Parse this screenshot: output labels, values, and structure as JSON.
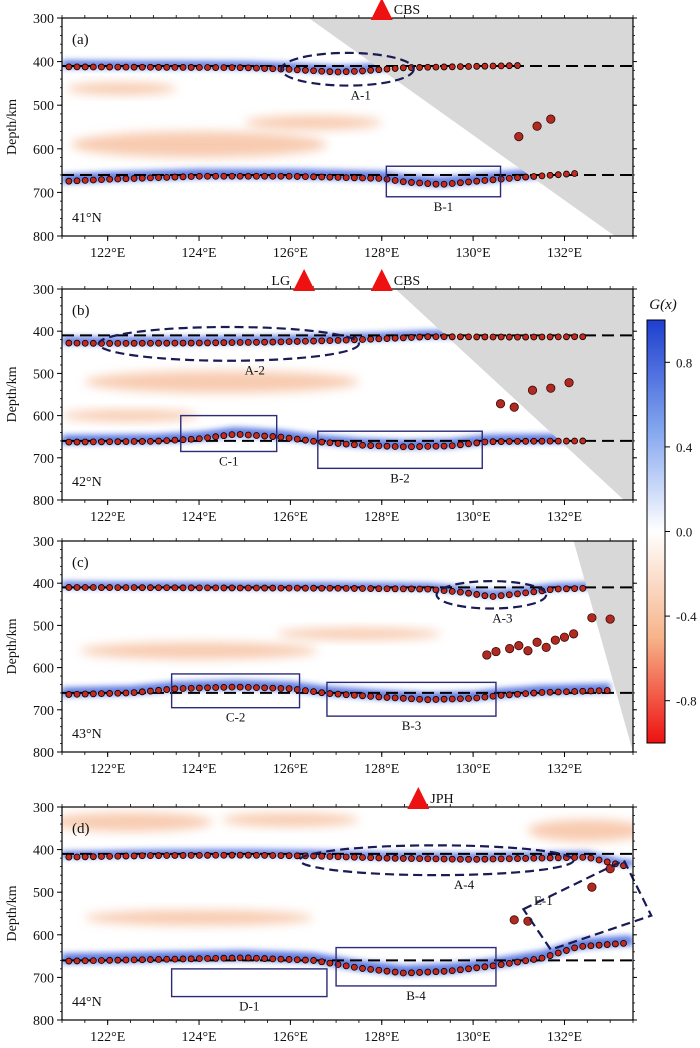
{
  "figure": {
    "colorbar": {
      "label": "G(x)",
      "tick_labels": [
        "0.8",
        "0.4",
        "0.0",
        "-0.4",
        "-0.8"
      ],
      "ticks": [
        0.8,
        0.4,
        0.0,
        -0.4,
        -0.8
      ],
      "range": [
        -1,
        1
      ],
      "colors": {
        "positive": "#1f3ecf",
        "mid": "#ffffff",
        "negative": "#ee1111"
      }
    },
    "colors": {
      "station": "#ee1111",
      "trace_fill": "#c62a1e",
      "blue": "#2a4fd6",
      "orange": "#f2a070",
      "mask": "#d8d8d8",
      "ellipse": "#1a1a55",
      "box": "#2b2b7a"
    }
  },
  "chart_data": [
    {
      "type": "heatmap",
      "panel": "(a)",
      "latitude_label": "41°N",
      "ylabel": "Depth/km",
      "xlim": [
        121,
        133.5
      ],
      "ylim": [
        800,
        300
      ],
      "x_tick_values": [
        122,
        124,
        126,
        128,
        130,
        132
      ],
      "x_tick_labels": [
        "122°E",
        "124°E",
        "126°E",
        "128°E",
        "130°E",
        "132°E"
      ],
      "y_tick_labels": [
        "300",
        "400",
        "500",
        "600",
        "700",
        "800"
      ],
      "y_ticks": [
        300,
        400,
        500,
        600,
        700,
        800
      ],
      "reference_depths": [
        410,
        660
      ],
      "stations": [
        {
          "name": "CBS",
          "lon": 128
        }
      ],
      "d410": {
        "lon": [
          121,
          123,
          125,
          126,
          127,
          127.5,
          128.5,
          130,
          131
        ],
        "depth": [
          412,
          413,
          414,
          418,
          424,
          422,
          414,
          411,
          409
        ]
      },
      "d660": {
        "lon": [
          121,
          122,
          124,
          126,
          128,
          128.5,
          129.3,
          130,
          131,
          132.3
        ],
        "depth": [
          675,
          670,
          663,
          663,
          668,
          676,
          682,
          675,
          666,
          656
        ]
      },
      "earthquakes": [
        {
          "lon": 131.0,
          "depth": 572
        },
        {
          "lon": 131.4,
          "depth": 548
        },
        {
          "lon": 131.7,
          "depth": 532
        }
      ],
      "mask_polygon": {
        "lon": [
          126.4,
          133.5,
          133.5,
          133.1
        ],
        "depth": [
          300,
          300,
          800,
          800
        ]
      },
      "annotations": [
        {
          "type": "ellipse",
          "label": "A-1",
          "lon_range": [
            125.8,
            128.7
          ],
          "depth_range": [
            380,
            455
          ]
        },
        {
          "type": "box",
          "label": "B-1",
          "lon_range": [
            128.1,
            130.6
          ],
          "depth_range": [
            640,
            710
          ]
        }
      ],
      "blue_bands": [
        {
          "lon": [
            121,
            133
          ],
          "depth": 410,
          "thickness": 18
        },
        {
          "lon": [
            121,
            133
          ],
          "depth": 660,
          "thickness": 22
        }
      ],
      "orange_blobs": [
        {
          "lon": 124,
          "depth": 590,
          "rx": 2.8,
          "ry": 30
        },
        {
          "lon": 122.3,
          "depth": 462,
          "rx": 1.2,
          "ry": 14
        },
        {
          "lon": 126.5,
          "depth": 540,
          "rx": 1.5,
          "ry": 16
        }
      ]
    },
    {
      "type": "heatmap",
      "panel": "(b)",
      "latitude_label": "42°N",
      "ylabel": "Depth/km",
      "xlim": [
        121,
        133.5
      ],
      "ylim": [
        800,
        300
      ],
      "x_tick_values": [
        122,
        124,
        126,
        128,
        130,
        132
      ],
      "x_tick_labels": [
        "122°E",
        "124°E",
        "126°E",
        "128°E",
        "130°E",
        "132°E"
      ],
      "y_tick_labels": [
        "300",
        "400",
        "500",
        "600",
        "700",
        "800"
      ],
      "y_ticks": [
        300,
        400,
        500,
        600,
        700,
        800
      ],
      "reference_depths": [
        410,
        660
      ],
      "stations": [
        {
          "name": "LG",
          "lon": 126.3
        },
        {
          "name": "CBS",
          "lon": 128
        }
      ],
      "d410": {
        "lon": [
          121,
          122,
          124,
          125.5,
          127,
          128,
          129,
          131,
          132.5
        ],
        "depth": [
          428,
          429,
          428,
          426,
          422,
          418,
          413,
          414,
          413
        ]
      },
      "d660": {
        "lon": [
          121,
          123,
          124,
          124.8,
          125.8,
          126.6,
          127.5,
          128.5,
          129.5,
          130.3,
          131,
          132.5
        ],
        "depth": [
          663,
          661,
          655,
          644,
          651,
          662,
          670,
          674,
          672,
          662,
          661,
          660
        ]
      },
      "earthquakes": [
        {
          "lon": 130.6,
          "depth": 572
        },
        {
          "lon": 130.9,
          "depth": 580
        },
        {
          "lon": 131.3,
          "depth": 540
        },
        {
          "lon": 131.7,
          "depth": 535
        },
        {
          "lon": 132.1,
          "depth": 522
        }
      ],
      "mask_polygon": {
        "lon": [
          128.3,
          133.5,
          133.5,
          133.3
        ],
        "depth": [
          300,
          300,
          800,
          800
        ]
      },
      "annotations": [
        {
          "type": "ellipse",
          "label": "A-2",
          "lon_range": [
            121.8,
            127.5
          ],
          "depth_range": [
            390,
            470
          ]
        },
        {
          "type": "box",
          "label": "C-1",
          "lon_range": [
            123.6,
            125.7
          ],
          "depth_range": [
            600,
            685
          ]
        },
        {
          "type": "box",
          "label": "B-2",
          "lon_range": [
            126.6,
            130.2
          ],
          "depth_range": [
            637,
            725
          ]
        }
      ],
      "blue_bands": [
        {
          "lon": [
            121,
            133
          ],
          "depth": 412,
          "thickness": 18
        },
        {
          "lon": [
            121,
            133
          ],
          "depth": 655,
          "thickness": 22
        }
      ],
      "orange_blobs": [
        {
          "lon": 124.5,
          "depth": 520,
          "rx": 3.0,
          "ry": 26
        },
        {
          "lon": 122.5,
          "depth": 600,
          "rx": 1.5,
          "ry": 14
        }
      ]
    },
    {
      "type": "heatmap",
      "panel": "(c)",
      "latitude_label": "43°N",
      "ylabel": "Depth/km",
      "xlim": [
        121,
        133.5
      ],
      "ylim": [
        800,
        300
      ],
      "x_tick_values": [
        122,
        124,
        126,
        128,
        130,
        132
      ],
      "x_tick_labels": [
        "122°E",
        "124°E",
        "126°E",
        "128°E",
        "130°E",
        "132°E"
      ],
      "y_tick_labels": [
        "300",
        "400",
        "500",
        "600",
        "700",
        "800"
      ],
      "y_ticks": [
        300,
        400,
        500,
        600,
        700,
        800
      ],
      "reference_depths": [
        410,
        660
      ],
      "stations": [],
      "d410": {
        "lon": [
          121,
          124,
          127,
          129,
          129.8,
          130.4,
          131,
          131.8,
          132.5
        ],
        "depth": [
          410,
          411,
          412,
          414,
          422,
          432,
          425,
          414,
          412
        ]
      },
      "d660": {
        "lon": [
          121,
          122.5,
          123.5,
          124.8,
          126,
          126.8,
          128,
          129,
          130,
          130.6,
          131.5,
          133
        ],
        "depth": [
          664,
          660,
          650,
          646,
          650,
          661,
          670,
          676,
          673,
          666,
          659,
          654
        ]
      },
      "earthquakes": [
        {
          "lon": 130.3,
          "depth": 570
        },
        {
          "lon": 130.5,
          "depth": 562
        },
        {
          "lon": 130.8,
          "depth": 555
        },
        {
          "lon": 131.0,
          "depth": 548
        },
        {
          "lon": 131.2,
          "depth": 560
        },
        {
          "lon": 131.4,
          "depth": 540
        },
        {
          "lon": 131.6,
          "depth": 552
        },
        {
          "lon": 131.8,
          "depth": 535
        },
        {
          "lon": 132.0,
          "depth": 528
        },
        {
          "lon": 132.2,
          "depth": 520
        },
        {
          "lon": 132.6,
          "depth": 482
        },
        {
          "lon": 133.0,
          "depth": 485
        }
      ],
      "mask_polygon": {
        "lon": [
          132.2,
          133.5,
          133.5
        ],
        "depth": [
          300,
          300,
          800
        ]
      },
      "annotations": [
        {
          "type": "ellipse",
          "label": "A-3",
          "lon_range": [
            129.2,
            131.6
          ],
          "depth_range": [
            395,
            460
          ]
        },
        {
          "type": "box",
          "label": "C-2",
          "lon_range": [
            123.4,
            126.2
          ],
          "depth_range": [
            615,
            695
          ]
        },
        {
          "type": "box",
          "label": "B-3",
          "lon_range": [
            126.8,
            130.5
          ],
          "depth_range": [
            635,
            715
          ]
        }
      ],
      "blue_bands": [
        {
          "lon": [
            121,
            133
          ],
          "depth": 412,
          "thickness": 16
        },
        {
          "lon": [
            121,
            133
          ],
          "depth": 660,
          "thickness": 22
        }
      ],
      "orange_blobs": [
        {
          "lon": 124,
          "depth": 560,
          "rx": 2.6,
          "ry": 20
        },
        {
          "lon": 127.5,
          "depth": 520,
          "rx": 1.8,
          "ry": 14
        }
      ]
    },
    {
      "type": "heatmap",
      "panel": "(d)",
      "latitude_label": "44°N",
      "ylabel": "Depth/km",
      "xlim": [
        121,
        133.5
      ],
      "ylim": [
        800,
        300
      ],
      "x_tick_values": [
        122,
        124,
        126,
        128,
        130,
        132
      ],
      "x_tick_labels": [
        "122°E",
        "124°E",
        "126°E",
        "128°E",
        "130°E",
        "132°E"
      ],
      "y_tick_labels": [
        "300",
        "400",
        "500",
        "600",
        "700",
        "800"
      ],
      "y_ticks": [
        300,
        400,
        500,
        600,
        700,
        800
      ],
      "reference_depths": [
        410,
        660
      ],
      "stations": [
        {
          "name": "JPH",
          "lon": 128.8
        }
      ],
      "d410": {
        "lon": [
          121,
          123,
          125,
          126.5,
          128,
          130,
          131.5,
          132.5,
          133.3
        ],
        "depth": [
          418,
          414,
          413,
          415,
          420,
          423,
          420,
          418,
          438
        ]
      },
      "d660": {
        "lon": [
          121,
          123,
          125,
          126.5,
          127.5,
          128.5,
          129.5,
          130.5,
          131.5,
          132.3,
          133.3
        ],
        "depth": [
          662,
          658,
          654,
          660,
          678,
          690,
          685,
          672,
          655,
          628,
          620
        ]
      },
      "earthquakes": [
        {
          "lon": 130.9,
          "depth": 565
        },
        {
          "lon": 131.2,
          "depth": 568
        },
        {
          "lon": 132.6,
          "depth": 488
        },
        {
          "lon": 133.0,
          "depth": 445
        }
      ],
      "mask_polygon": null,
      "annotations": [
        {
          "type": "ellipse",
          "label": "A-4",
          "lon_range": [
            126.2,
            132.2
          ],
          "depth_range": [
            390,
            460
          ]
        },
        {
          "type": "box",
          "label": "D-1",
          "lon_range": [
            123.4,
            126.8
          ],
          "depth_range": [
            680,
            745
          ]
        },
        {
          "type": "box",
          "label": "B-4",
          "lon_range": [
            127,
            130.5
          ],
          "depth_range": [
            630,
            720
          ]
        },
        {
          "type": "rotated-box",
          "label": "E-1",
          "corners_lon": [
            131.1,
            133.3,
            133.9,
            131.7
          ],
          "corners_depth": [
            540,
            425,
            555,
            635
          ]
        }
      ],
      "blue_bands": [
        {
          "lon": [
            121,
            133.5
          ],
          "depth": 410,
          "thickness": 16
        },
        {
          "lon": [
            121,
            133.5
          ],
          "depth": 655,
          "thickness": 24
        }
      ],
      "orange_blobs": [
        {
          "lon": 122.5,
          "depth": 335,
          "rx": 1.8,
          "ry": 22
        },
        {
          "lon": 126,
          "depth": 330,
          "rx": 1.5,
          "ry": 16
        },
        {
          "lon": 124,
          "depth": 560,
          "rx": 2.5,
          "ry": 18
        },
        {
          "lon": 132.5,
          "depth": 355,
          "rx": 1.3,
          "ry": 26
        }
      ]
    }
  ]
}
